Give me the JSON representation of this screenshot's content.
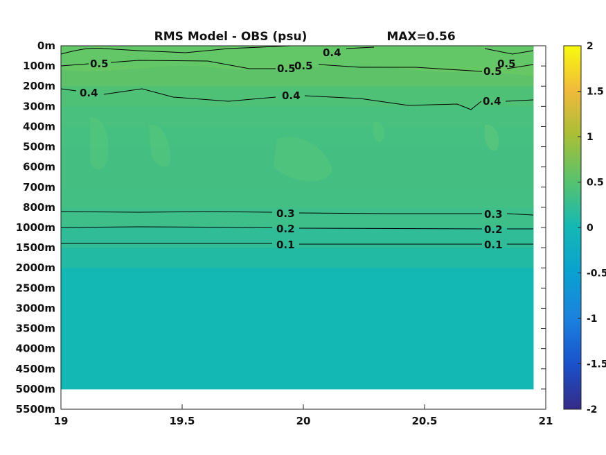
{
  "chart_data": {
    "type": "heatmap",
    "title": "RMS Model - OBS (psu)",
    "max_label": "MAX=0.56",
    "x_ticks": [
      "19",
      "19.5",
      "20",
      "20.5",
      "21"
    ],
    "x_range": [
      19,
      21
    ],
    "x_data_range": [
      19,
      20.95
    ],
    "y_ticks": [
      "0m",
      "100m",
      "200m",
      "300m",
      "400m",
      "500m",
      "600m",
      "700m",
      "800m",
      "1000m",
      "1500m",
      "2000m",
      "2500m",
      "3000m",
      "3500m",
      "4000m",
      "4500m",
      "5000m",
      "5500m"
    ],
    "depth_levels": [
      "0m",
      "100m",
      "200m",
      "300m",
      "400m",
      "500m",
      "600m",
      "700m",
      "800m",
      "1000m",
      "1500m",
      "2000m",
      "2500m",
      "3000m",
      "3500m",
      "4000m",
      "4500m",
      "5000m"
    ],
    "rms_by_depth": [
      0.48,
      0.55,
      0.45,
      0.4,
      0.38,
      0.37,
      0.37,
      0.36,
      0.32,
      0.22,
      0.12,
      0.0,
      0.0,
      0.0,
      0.0,
      0.0,
      0.0,
      0.0
    ],
    "contours": [
      {
        "level": "0.5",
        "labels": [
          "0.5",
          "0.5",
          "0.5",
          "0.5",
          "0.5"
        ]
      },
      {
        "level": "0.4",
        "labels": [
          "0.4",
          "0.4",
          "0.4",
          "0.4"
        ]
      },
      {
        "level": "0.3",
        "labels": [
          "0.3",
          "0.3"
        ]
      },
      {
        "level": "0.2",
        "labels": [
          "0.2",
          "0.2"
        ]
      },
      {
        "level": "0.1",
        "labels": [
          "0.1",
          "0.1"
        ]
      }
    ],
    "colorbar": {
      "range": [
        -2,
        2
      ],
      "ticks": [
        "2",
        "1.5",
        "1",
        "0.5",
        "0",
        "-0.5",
        "-1",
        "-1.5",
        "-2"
      ],
      "colormap": "parula"
    },
    "grid": false
  }
}
